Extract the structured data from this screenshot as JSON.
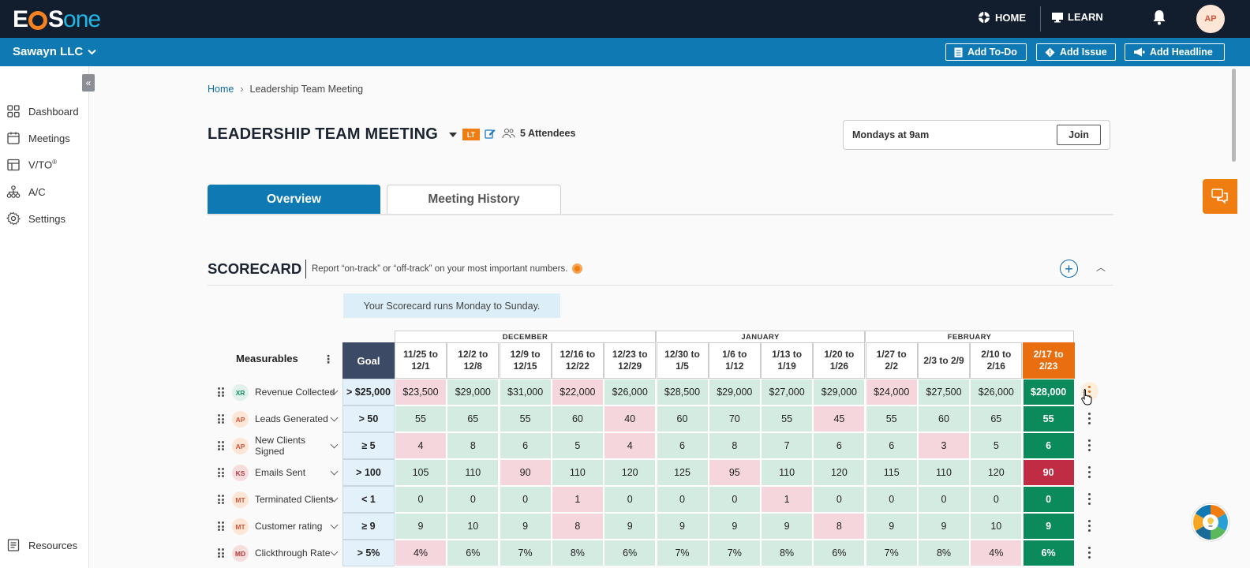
{
  "brand": {
    "logo_left": "E",
    "logo_mid": "S",
    "logo_right": "one"
  },
  "topbar": {
    "home": "HOME",
    "learn": "LEARN",
    "avatar": "AP"
  },
  "org": {
    "name": "Sawayn LLC"
  },
  "quick_actions": {
    "todo": "Add To-Do",
    "issue": "Add Issue",
    "headline": "Add Headline"
  },
  "sidebar": {
    "items": [
      {
        "label": "Dashboard",
        "icon": "grid-icon"
      },
      {
        "label": "Meetings",
        "icon": "calendar-icon"
      },
      {
        "label": "V/TO",
        "sup": "®",
        "icon": "layout-icon"
      },
      {
        "label": "A/C",
        "icon": "org-chart-icon"
      },
      {
        "label": "Settings",
        "icon": "gear-icon"
      }
    ],
    "resources": "Resources"
  },
  "breadcrumb": {
    "home": "Home",
    "current": "Leadership Team Meeting"
  },
  "meeting": {
    "title": "LEADERSHIP TEAM MEETING",
    "badge": "LT",
    "attendees": "5 Attendees",
    "schedule": "Mondays at 9am",
    "join": "Join"
  },
  "tabs": {
    "overview": "Overview",
    "history": "Meeting History"
  },
  "scorecard": {
    "title": "SCORECARD",
    "description": "Report “on-track” or “off-track” on your most important numbers.",
    "note": "Your Scorecard runs Monday to Sunday.",
    "measurables_label": "Measurables",
    "goal_label": "Goal",
    "months": [
      "DECEMBER",
      "JANUARY",
      "FEBRUARY"
    ],
    "weeks": [
      "11/25 to 12/1",
      "12/2 to 12/8",
      "12/9 to 12/15",
      "12/16 to 12/22",
      "12/23 to 12/29",
      "12/30 to 1/5",
      "1/6 to 1/12",
      "1/13 to 1/19",
      "1/20 to 1/26",
      "1/27 to 2/2",
      "2/3 to 2/9",
      "2/10 to 2/16",
      "2/17 to 2/23"
    ],
    "rows": [
      {
        "owner": "XR",
        "owner_color": "#1a8a6a",
        "owner_bg": "#dff1ea",
        "name": "Revenue Collected",
        "goal": "> $25,000",
        "values": [
          "$23,500",
          "$29,000",
          "$31,000",
          "$22,000",
          "$26,000",
          "$28,500",
          "$29,000",
          "$27,000",
          "$29,000",
          "$24,000",
          "$27,500",
          "$26,000",
          "$28,000"
        ],
        "status": [
          "off",
          "on",
          "on",
          "off",
          "on",
          "on",
          "on",
          "on",
          "on",
          "off",
          "on",
          "on",
          "on"
        ]
      },
      {
        "owner": "AP",
        "owner_color": "#d2543a",
        "owner_bg": "#fde6d6",
        "name": "Leads Generated",
        "goal": "> 50",
        "values": [
          "55",
          "65",
          "55",
          "60",
          "40",
          "60",
          "70",
          "55",
          "45",
          "55",
          "60",
          "65",
          "55"
        ],
        "status": [
          "on",
          "on",
          "on",
          "on",
          "off",
          "on",
          "on",
          "on",
          "off",
          "on",
          "on",
          "on",
          "on"
        ]
      },
      {
        "owner": "AP",
        "owner_color": "#d2543a",
        "owner_bg": "#fde6d6",
        "name": "New Clients Signed",
        "goal": "≥ 5",
        "values": [
          "4",
          "8",
          "6",
          "5",
          "4",
          "6",
          "8",
          "7",
          "6",
          "6",
          "3",
          "5",
          "6"
        ],
        "status": [
          "off",
          "on",
          "on",
          "on",
          "off",
          "on",
          "on",
          "on",
          "on",
          "on",
          "off",
          "on",
          "on"
        ]
      },
      {
        "owner": "KS",
        "owner_color": "#b23a3a",
        "owner_bg": "#f7dede",
        "name": "Emails Sent",
        "goal": "> 100",
        "values": [
          "105",
          "110",
          "90",
          "110",
          "120",
          "125",
          "95",
          "110",
          "120",
          "115",
          "110",
          "120",
          "90"
        ],
        "status": [
          "on",
          "on",
          "off",
          "on",
          "on",
          "on",
          "off",
          "on",
          "on",
          "on",
          "on",
          "on",
          "off"
        ]
      },
      {
        "owner": "MT",
        "owner_color": "#d2543a",
        "owner_bg": "#fde6d6",
        "name": "Terminated Clients",
        "goal": "< 1",
        "values": [
          "0",
          "0",
          "0",
          "1",
          "0",
          "0",
          "0",
          "1",
          "0",
          "0",
          "0",
          "0",
          "0"
        ],
        "status": [
          "on",
          "on",
          "on",
          "off",
          "on",
          "on",
          "on",
          "off",
          "on",
          "on",
          "on",
          "on",
          "on"
        ]
      },
      {
        "owner": "MT",
        "owner_color": "#d2543a",
        "owner_bg": "#fde6d6",
        "name": "Customer rating",
        "goal": "≥ 9",
        "values": [
          "9",
          "10",
          "9",
          "8",
          "9",
          "9",
          "9",
          "9",
          "8",
          "9",
          "9",
          "10",
          "9"
        ],
        "status": [
          "on",
          "on",
          "on",
          "off",
          "on",
          "on",
          "on",
          "on",
          "off",
          "on",
          "on",
          "on",
          "on"
        ]
      },
      {
        "owner": "MD",
        "owner_color": "#b23a3a",
        "owner_bg": "#f7dede",
        "name": "Clickthrough Rate",
        "goal": "> 5%",
        "values": [
          "4%",
          "6%",
          "7%",
          "8%",
          "6%",
          "7%",
          "7%",
          "8%",
          "6%",
          "7%",
          "8%",
          "4%",
          "6%"
        ],
        "status": [
          "off",
          "on",
          "on",
          "on",
          "on",
          "on",
          "on",
          "on",
          "on",
          "on",
          "on",
          "off",
          "on"
        ]
      }
    ]
  }
}
